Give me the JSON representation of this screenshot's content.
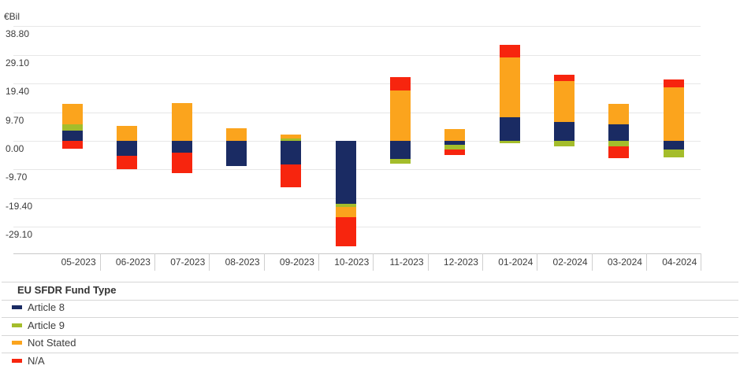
{
  "chart_data": {
    "type": "bar",
    "stacked": true,
    "unit_label": "€Bil",
    "categories": [
      "05-2023",
      "06-2023",
      "07-2023",
      "08-2023",
      "09-2023",
      "10-2023",
      "11-2023",
      "12-2023",
      "01-2024",
      "02-2024",
      "03-2024",
      "04-2024"
    ],
    "series": [
      {
        "name": "Article 8",
        "color": "#1a2b63",
        "values": [
          3.4,
          -5.0,
          -4.0,
          -8.4,
          -7.9,
          -21.3,
          -6.0,
          -1.2,
          7.9,
          6.4,
          5.5,
          -2.9
        ]
      },
      {
        "name": "Article 9",
        "color": "#a4bd2b",
        "values": [
          2.2,
          0,
          0,
          0,
          0.8,
          -1.1,
          -1.7,
          -1.6,
          -0.7,
          -1.9,
          -1.8,
          -2.7
        ]
      },
      {
        "name": "Not Stated",
        "color": "#fba41d",
        "values": [
          6.8,
          5.1,
          12.8,
          4.3,
          1.3,
          -3.5,
          17.1,
          4.0,
          20.3,
          13.9,
          7.1,
          18.2
        ]
      },
      {
        "name": "N/A",
        "color": "#f7250e",
        "values": [
          -2.7,
          -4.6,
          -6.9,
          0,
          -7.9,
          -9.7,
          4.5,
          -2.0,
          4.3,
          2.2,
          -4.1,
          2.6
        ]
      }
    ],
    "y_ticks": [
      {
        "value": 38.8,
        "label": "38.80"
      },
      {
        "value": 29.1,
        "label": "29.10"
      },
      {
        "value": 19.4,
        "label": "19.40"
      },
      {
        "value": 9.7,
        "label": "9.70"
      },
      {
        "value": 0.0,
        "label": "0.00"
      },
      {
        "value": -9.7,
        "label": "-9.70"
      },
      {
        "value": -19.4,
        "label": "-19.40"
      },
      {
        "value": -29.1,
        "label": "-29.10"
      }
    ],
    "ylim": [
      -38.8,
      40.3
    ],
    "grid": "horizontal",
    "legend_position": "bottom"
  },
  "legend": {
    "title": "EU SFDR Fund Type"
  }
}
